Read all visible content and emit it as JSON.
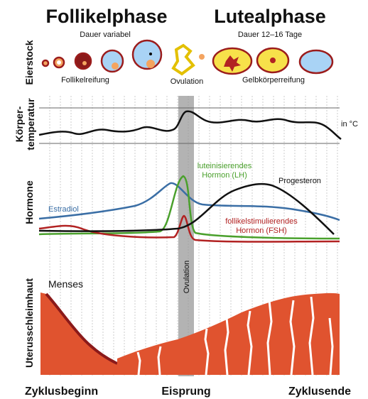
{
  "header": {
    "left": {
      "title": "Follikelphase",
      "subtitle": "Dauer variabel"
    },
    "right": {
      "title": "Lutealphase",
      "subtitle": "Dauer 12–16 Tage"
    }
  },
  "ovary": {
    "label": "Eierstock",
    "annotations": [
      "Follikelreifung",
      "Ovulation",
      "Gelbkörperreifung"
    ]
  },
  "temperature": {
    "label": [
      "Körper-",
      "temperatur"
    ],
    "unit": "in °C"
  },
  "hormones": {
    "label": "Hormone",
    "curves": {
      "lh": [
        "luteinisierendes",
        "Hormon (LH)"
      ],
      "progesterone": "Progesteron",
      "estradiol": "Estradiol",
      "fsh": [
        "follikelstimulierendes",
        "Hormon (FSH)"
      ]
    },
    "ovulation": "Ovulation"
  },
  "uterus": {
    "label": "Uterusschleimhaut",
    "annotation": "Menses"
  },
  "footer": {
    "labels": [
      "Zyklusbeginn",
      "Eisprung",
      "Zyklusende"
    ]
  }
}
